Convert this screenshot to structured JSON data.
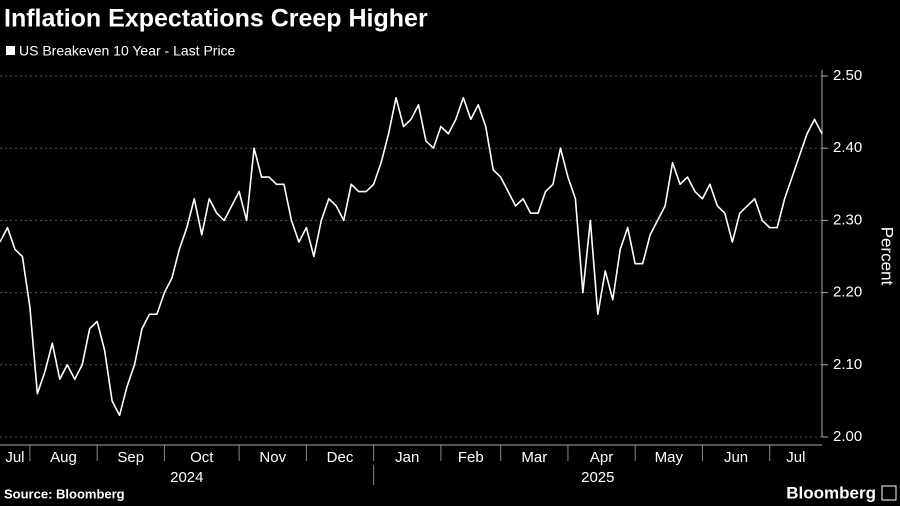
{
  "chart_data": {
    "type": "line",
    "title": "Inflation Expectations Creep Higher",
    "y_axis_label": "Percent",
    "source": "Source: Bloomberg",
    "brand": "Bloomberg",
    "categories": [
      "Jul",
      null,
      null,
      null,
      "Aug",
      null,
      null,
      null,
      null,
      null,
      null,
      null,
      null,
      "Sep",
      null,
      null,
      null,
      null,
      null,
      null,
      null,
      null,
      "Oct",
      null,
      null,
      null,
      null,
      null,
      null,
      null,
      null,
      null,
      "Nov",
      null,
      null,
      null,
      null,
      null,
      null,
      null,
      null,
      "Dec",
      null,
      null,
      null,
      null,
      null,
      null,
      null,
      null,
      "Jan",
      null,
      null,
      null,
      null,
      null,
      null,
      null,
      null,
      "Feb",
      null,
      null,
      null,
      null,
      null,
      null,
      null,
      "Mar",
      null,
      null,
      null,
      null,
      null,
      null,
      null,
      null,
      "Apr",
      null,
      null,
      null,
      null,
      null,
      null,
      null,
      null,
      "May",
      null,
      null,
      null,
      null,
      null,
      null,
      null,
      null,
      "Jun",
      null,
      null,
      null,
      null,
      null,
      null,
      null,
      null,
      "Jul",
      null,
      null,
      null,
      null,
      null,
      null,
      null
    ],
    "years": [
      {
        "label": "2024",
        "first_month": 0
      },
      {
        "label": "2025",
        "first_month": 6
      }
    ],
    "series": [
      {
        "name": "US Breakeven 10 Year - Last Price",
        "color": "#ffffff",
        "values": [
          2.27,
          2.29,
          2.26,
          2.25,
          2.18,
          2.06,
          2.09,
          2.13,
          2.08,
          2.1,
          2.08,
          2.1,
          2.15,
          2.16,
          2.12,
          2.05,
          2.03,
          2.07,
          2.1,
          2.15,
          2.17,
          2.17,
          2.2,
          2.22,
          2.26,
          2.29,
          2.33,
          2.28,
          2.33,
          2.31,
          2.3,
          2.32,
          2.34,
          2.3,
          2.4,
          2.36,
          2.36,
          2.35,
          2.35,
          2.3,
          2.27,
          2.29,
          2.25,
          2.3,
          2.33,
          2.32,
          2.3,
          2.35,
          2.34,
          2.34,
          2.35,
          2.38,
          2.42,
          2.47,
          2.43,
          2.44,
          2.46,
          2.41,
          2.4,
          2.43,
          2.42,
          2.44,
          2.47,
          2.44,
          2.46,
          2.43,
          2.37,
          2.36,
          2.34,
          2.32,
          2.33,
          2.31,
          2.31,
          2.34,
          2.35,
          2.4,
          2.36,
          2.33,
          2.2,
          2.3,
          2.17,
          2.23,
          2.19,
          2.26,
          2.29,
          2.24,
          2.24,
          2.28,
          2.3,
          2.32,
          2.38,
          2.35,
          2.36,
          2.34,
          2.33,
          2.35,
          2.32,
          2.31,
          2.27,
          2.31,
          2.32,
          2.33,
          2.3,
          2.29,
          2.29,
          2.33,
          2.36,
          2.39,
          2.42,
          2.44,
          2.42
        ]
      }
    ],
    "ylim": [
      2.0,
      2.5
    ],
    "yticks": [
      {
        "value": 2,
        "label": "2.00"
      },
      {
        "value": 2.1,
        "label": "2.10"
      },
      {
        "value": 2.2,
        "label": "2.20"
      },
      {
        "value": 2.3,
        "label": "2.30"
      },
      {
        "value": 2.4,
        "label": "2.40"
      },
      {
        "value": 2.5,
        "label": "2.50"
      }
    ],
    "grid": true
  }
}
